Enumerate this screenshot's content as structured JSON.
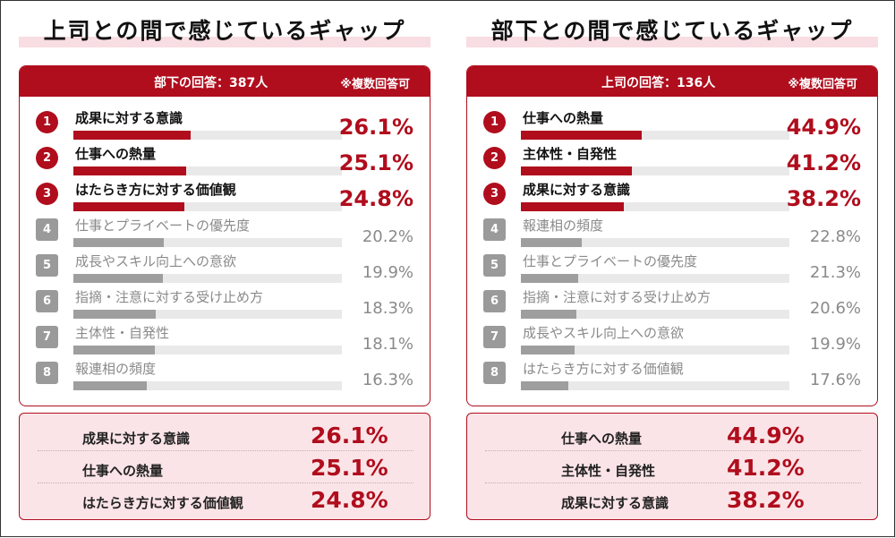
{
  "chart_data": [
    {
      "type": "bar",
      "title": "上司との間で感じているギャップ",
      "respondents": "部下の回答：387人",
      "note": "※複数回答可",
      "categories": [
        "成果に対する意識",
        "仕事への熱量",
        "はたらき方に対する価値観",
        "仕事とプライベートの優先度",
        "成長やスキル向上への意欲",
        "指摘・注意に対する受け止め方",
        "主体性・自発性",
        "報連相の頻度"
      ],
      "values": [
        26.1,
        25.1,
        24.8,
        20.2,
        19.9,
        18.3,
        18.1,
        16.3
      ],
      "value_labels": [
        "26.1%",
        "25.1%",
        "24.8%",
        "20.2%",
        "19.9%",
        "18.3%",
        "18.1%",
        "16.3%"
      ],
      "ranks": [
        "1",
        "2",
        "3",
        "4",
        "5",
        "6",
        "7",
        "8"
      ],
      "top_n_highlighted": 3,
      "xlim": [
        0,
        60
      ],
      "summary": [
        {
          "label": "成果に対する意識",
          "value": "26.1%"
        },
        {
          "label": "仕事への熱量",
          "value": "25.1%"
        },
        {
          "label": "はたらき方に対する価値観",
          "value": "24.8%"
        }
      ]
    },
    {
      "type": "bar",
      "title": "部下との間で感じているギャップ",
      "respondents": "上司の回答：136人",
      "note": "※複数回答可",
      "categories": [
        "仕事への熱量",
        "主体性・自発性",
        "成果に対する意識",
        "報連相の頻度",
        "仕事とプライベートの優先度",
        "指摘・注意に対する受け止め方",
        "成長やスキル向上への意欲",
        "はたらき方に対する価値観"
      ],
      "values": [
        44.9,
        41.2,
        38.2,
        22.8,
        21.3,
        20.6,
        19.9,
        17.6
      ],
      "value_labels": [
        "44.9%",
        "41.2%",
        "38.2%",
        "22.8%",
        "21.3%",
        "20.6%",
        "19.9%",
        "17.6%"
      ],
      "ranks": [
        "1",
        "2",
        "3",
        "4",
        "5",
        "6",
        "7",
        "8"
      ],
      "top_n_highlighted": 3,
      "xlim": [
        0,
        100
      ],
      "summary": [
        {
          "label": "仕事への熱量",
          "value": "44.9%"
        },
        {
          "label": "主体性・自発性",
          "value": "41.2%"
        },
        {
          "label": "成果に対する意識",
          "value": "38.2%"
        }
      ]
    }
  ],
  "colors": {
    "accent": "#b00d1d",
    "muted": "#9e9e9e",
    "track": "#e9e9e9",
    "summary_bg": "#fbe4e7",
    "title_underline": "#f8dde2"
  }
}
